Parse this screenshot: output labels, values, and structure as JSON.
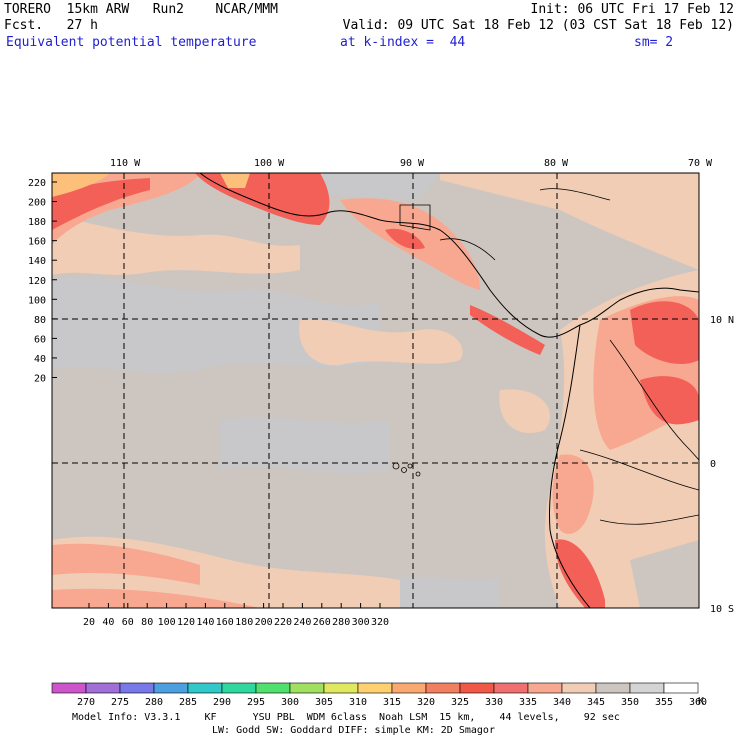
{
  "header": {
    "line1_left": "TORERO  15km ARW   Run2    NCAR/MMM",
    "line1_right": "Init: 06 UTC Fri 17 Feb 12",
    "line2_left": "Fcst.   27 h",
    "line2_right": "Valid: 09 UTC Sat 18 Feb 12 (03 CST Sat 18 Feb 12)",
    "field": "Equivalent potential temperature",
    "kindex": "at k-index =  44",
    "sm": "sm= 2"
  },
  "map": {
    "lon_labels": [
      "110 W",
      "100 W",
      "90 W",
      "80 W",
      "70 W"
    ],
    "lat_labels": [
      "10 N",
      "0",
      "10 S"
    ],
    "y_ticks": [
      "220",
      "200",
      "180",
      "160",
      "140",
      "120",
      "100",
      "80",
      "60",
      "40",
      "20"
    ],
    "x_ticks": [
      "20",
      "40",
      "60",
      "80",
      "100",
      "120",
      "140",
      "160",
      "180",
      "200",
      "220",
      "240",
      "260",
      "280",
      "300",
      "320"
    ],
    "colors": {
      "background": "#cdc6c0",
      "cool": "#c8c8ca",
      "light": "#f0cdb4",
      "salmon": "#f8a890",
      "red": "#f26058",
      "orange": "#fdc07a"
    }
  },
  "colorbar": {
    "levels": [
      "270",
      "275",
      "280",
      "285",
      "290",
      "295",
      "300",
      "305",
      "310",
      "315",
      "320",
      "325",
      "330",
      "335",
      "340",
      "345",
      "350",
      "355",
      "360"
    ],
    "unit": "K",
    "colors": [
      "#cc55cc",
      "#a070d8",
      "#7878e8",
      "#4ca0e0",
      "#30c8c8",
      "#30d8a0",
      "#50e070",
      "#a0e060",
      "#e0e860",
      "#ffd070",
      "#f8a870",
      "#f08060",
      "#f05848",
      "#f07070",
      "#f8a890",
      "#f0cdb4",
      "#cdc6c0",
      "#d4d4d4",
      "#ffffff"
    ]
  },
  "footer": {
    "line1": "Model Info: V3.3.1    KF      YSU PBL  WDM 6class  Noah LSM  15 km,    44 levels,    92 sec",
    "line2": "LW: Godd SW: Goddard DIFF: simple KM: 2D Smagor"
  }
}
